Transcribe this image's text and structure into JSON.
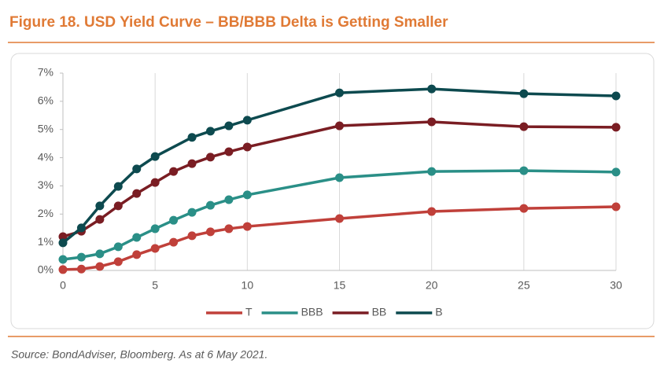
{
  "chart_data": {
    "type": "line",
    "title": "Figure 18. USD Yield Curve – BB/BBB Delta is Getting Smaller",
    "source": "Source: BondAdviser, Bloomberg. As at 6 May 2021.",
    "x": [
      0,
      1,
      2,
      3,
      4,
      5,
      6,
      7,
      8,
      9,
      10,
      15,
      20,
      25,
      30
    ],
    "series": [
      {
        "name": "T",
        "color": "#c0403a",
        "values": [
          0.03,
          0.05,
          0.14,
          0.31,
          0.56,
          0.78,
          1.0,
          1.23,
          1.37,
          1.48,
          1.56,
          1.84,
          2.09,
          2.2,
          2.26
        ]
      },
      {
        "name": "BBB",
        "color": "#2a8f87",
        "values": [
          0.39,
          0.47,
          0.59,
          0.84,
          1.17,
          1.48,
          1.78,
          2.06,
          2.31,
          2.51,
          2.68,
          3.29,
          3.51,
          3.54,
          3.49
        ]
      },
      {
        "name": "BB",
        "color": "#7a1d23",
        "values": [
          1.2,
          1.39,
          1.81,
          2.29,
          2.73,
          3.12,
          3.51,
          3.79,
          4.02,
          4.21,
          4.38,
          5.13,
          5.27,
          5.1,
          5.08
        ]
      },
      {
        "name": "B",
        "color": "#0d4a4f",
        "x": [
          0,
          1,
          2,
          3,
          4,
          5,
          7,
          8,
          9,
          10,
          15,
          20,
          25,
          30
        ],
        "values": [
          0.98,
          1.51,
          2.29,
          2.98,
          3.6,
          4.04,
          4.72,
          4.94,
          5.13,
          5.33,
          6.3,
          6.44,
          6.27,
          6.19
        ]
      }
    ],
    "xlim": [
      0,
      30
    ],
    "xticks": [
      0,
      5,
      10,
      15,
      20,
      25,
      30
    ],
    "ylim": [
      0,
      7
    ],
    "yticks": [
      {
        "value": 0,
        "label": "0%"
      },
      {
        "value": 1,
        "label": "1%"
      },
      {
        "value": 2,
        "label": "2%"
      },
      {
        "value": 3,
        "label": "3%"
      },
      {
        "value": 4,
        "label": "4%"
      },
      {
        "value": 5,
        "label": "5%"
      },
      {
        "value": 6,
        "label": "6%"
      },
      {
        "value": 7,
        "label": "7%"
      }
    ],
    "grid": "x"
  }
}
